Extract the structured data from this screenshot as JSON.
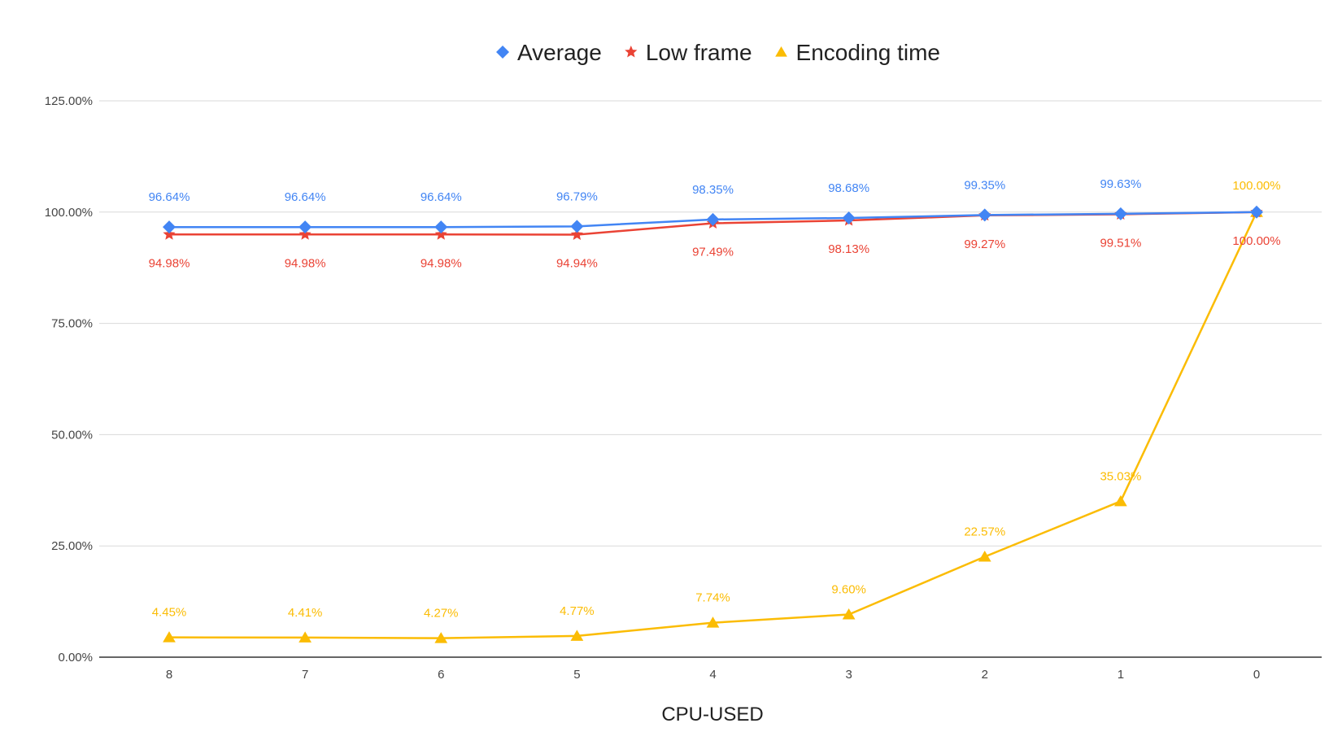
{
  "chart_data": {
    "type": "line",
    "xlabel": "CPU-USED",
    "ylabel": "",
    "categories": [
      "8",
      "7",
      "6",
      "5",
      "4",
      "3",
      "2",
      "1",
      "0"
    ],
    "y_ticks": [
      "0.00%",
      "25.00%",
      "50.00%",
      "75.00%",
      "100.00%",
      "125.00%"
    ],
    "ylim": [
      0,
      125
    ],
    "grid": true,
    "legend_position": "top",
    "series": [
      {
        "name": "Average",
        "color": "#4285f4",
        "marker": "diamond",
        "values": [
          96.64,
          96.64,
          96.64,
          96.79,
          98.35,
          98.68,
          99.35,
          99.63,
          100.0
        ],
        "labels": [
          "96.64%",
          "96.64%",
          "96.64%",
          "96.79%",
          "98.35%",
          "98.68%",
          "99.35%",
          "99.63%",
          ""
        ]
      },
      {
        "name": "Low frame",
        "color": "#ea4335",
        "marker": "star",
        "values": [
          94.98,
          94.98,
          94.98,
          94.94,
          97.49,
          98.13,
          99.27,
          99.51,
          100.0
        ],
        "labels": [
          "94.98%",
          "94.98%",
          "94.98%",
          "94.94%",
          "97.49%",
          "98.13%",
          "99.27%",
          "99.51%",
          "100.00%"
        ]
      },
      {
        "name": "Encoding time",
        "color": "#fbbc04",
        "marker": "triangle",
        "values": [
          4.45,
          4.41,
          4.27,
          4.77,
          7.74,
          9.6,
          22.57,
          35.03,
          100.0
        ],
        "labels": [
          "4.45%",
          "4.41%",
          "4.27%",
          "4.77%",
          "7.74%",
          "9.60%",
          "22.57%",
          "35.03%",
          "100.00%"
        ]
      }
    ]
  }
}
